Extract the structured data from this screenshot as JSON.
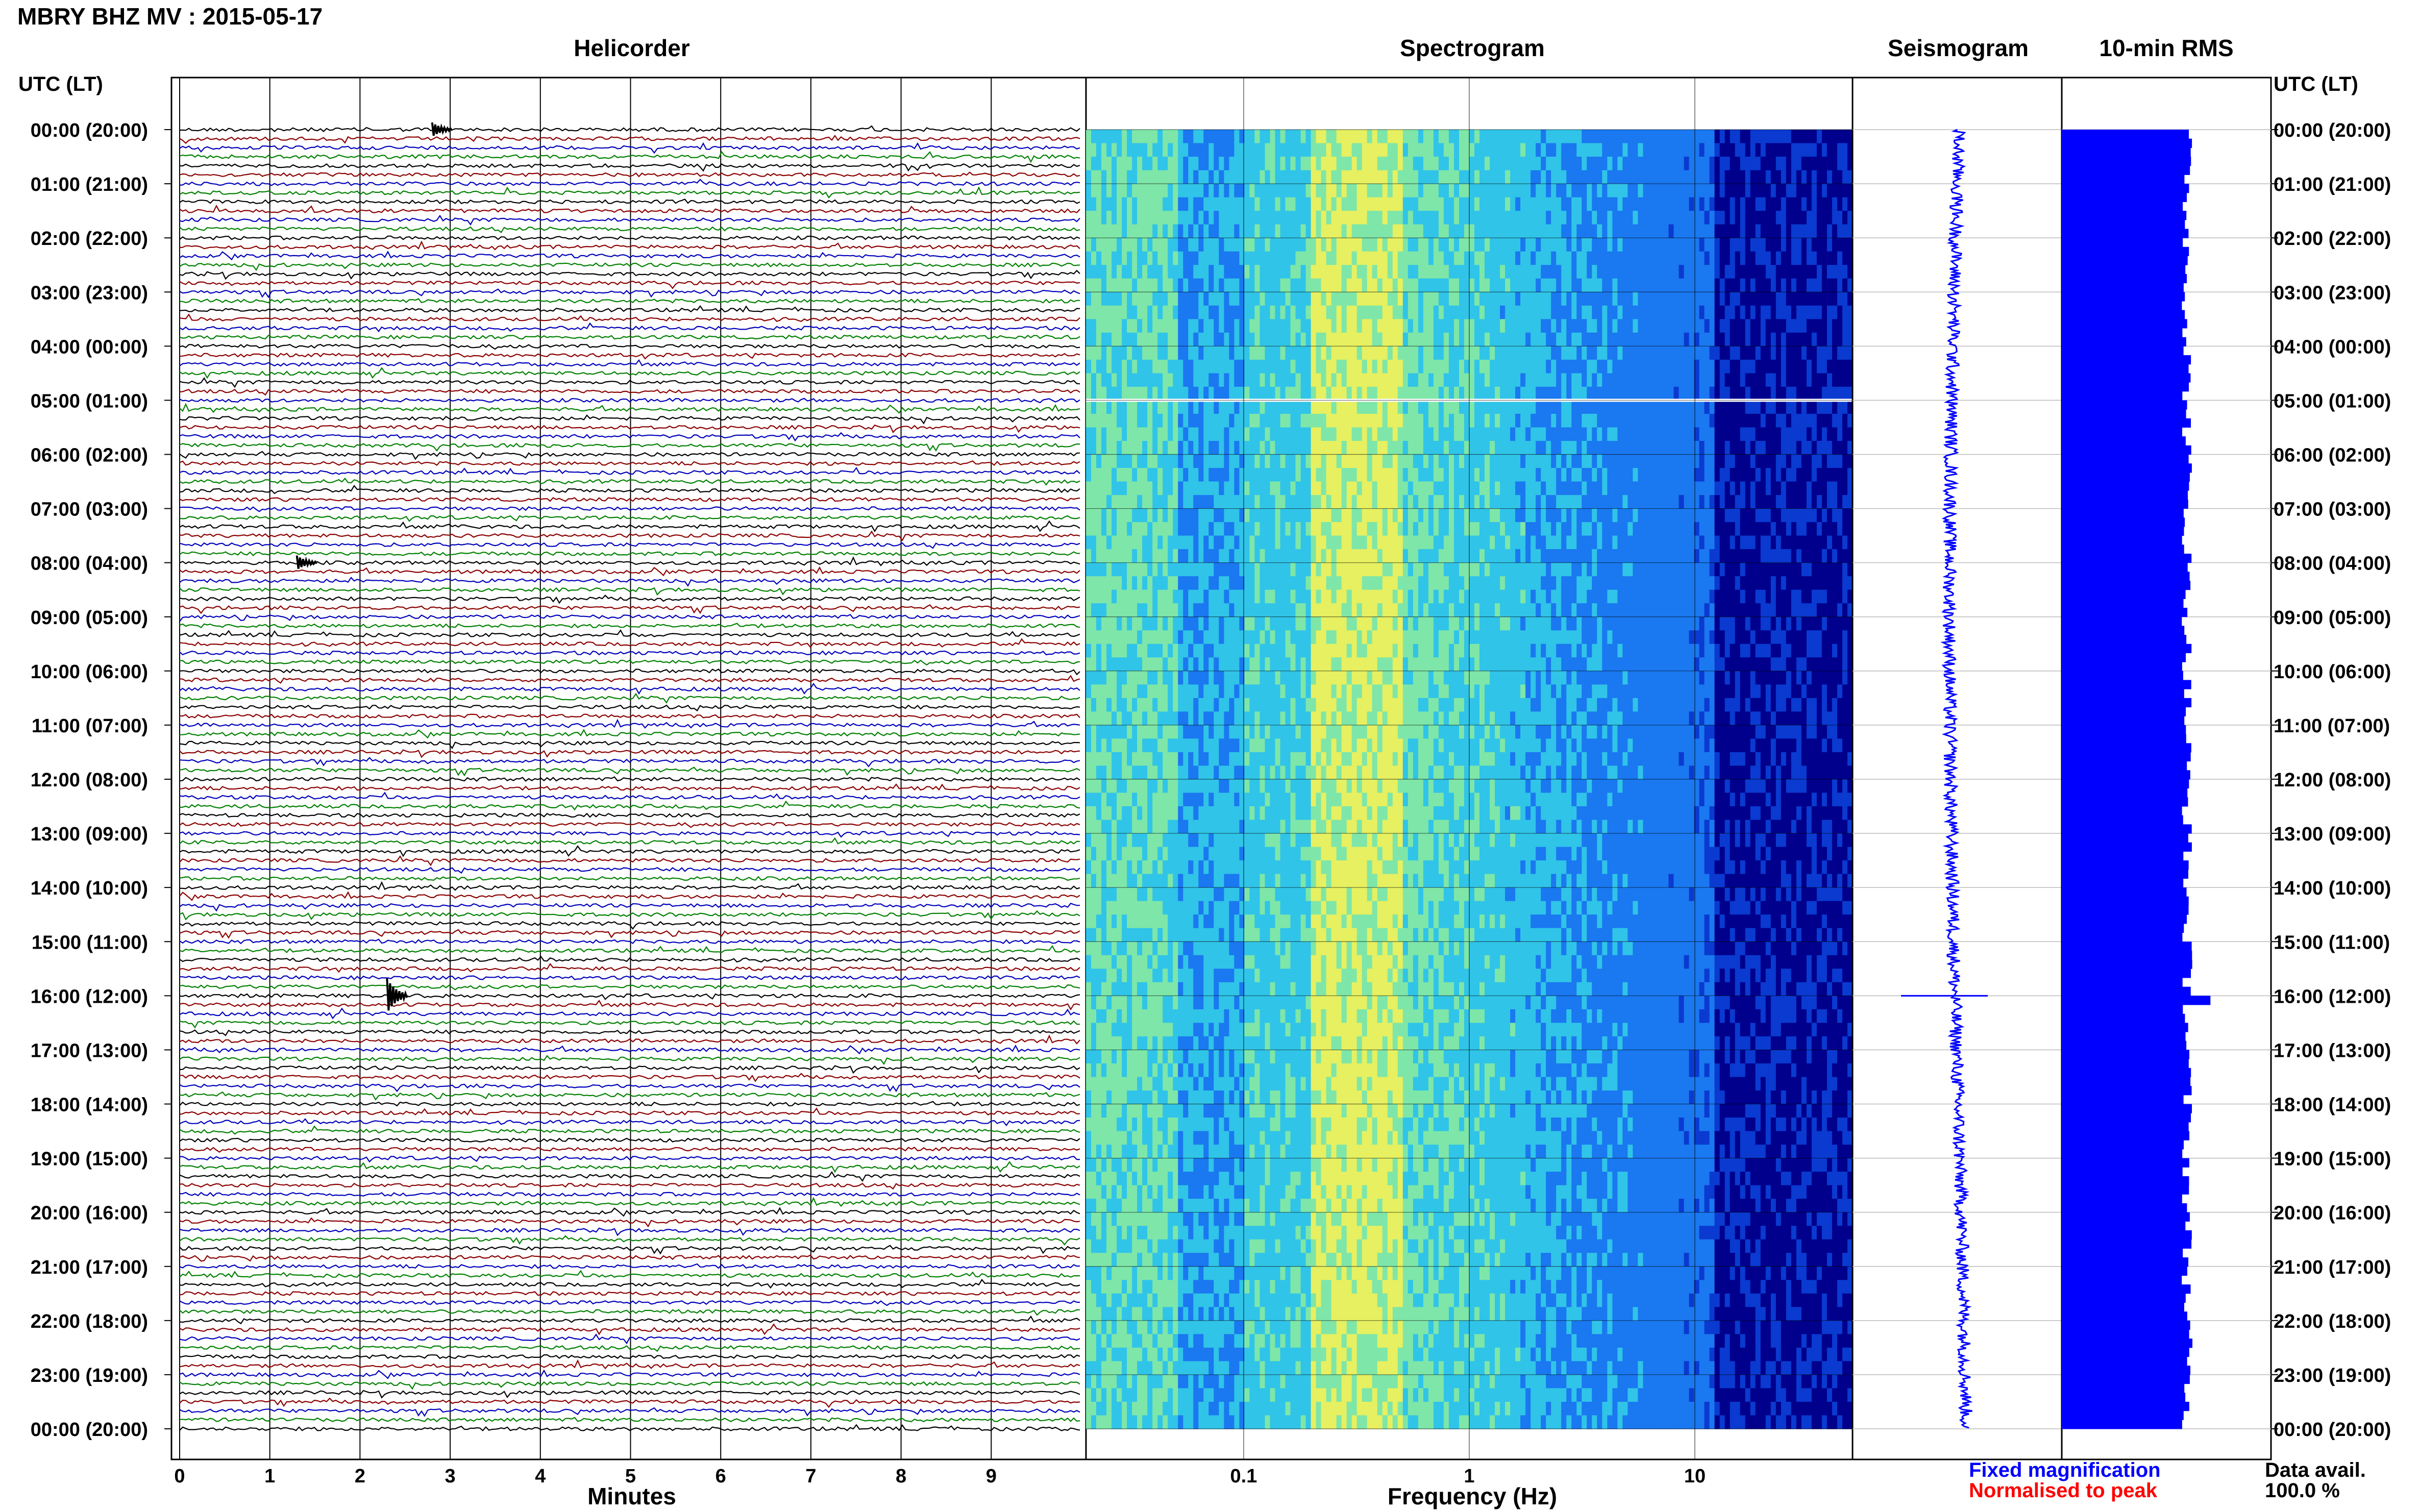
{
  "header": {
    "title": "MBRY BHZ MV : 2015-05-17",
    "tz_label": "UTC (LT)",
    "tz_label_right": "UTC (LT)"
  },
  "panels": {
    "helicorder": "Helicorder",
    "spectrogram": "Spectrogram",
    "seismogram": "Seismogram",
    "rms": "10-min RMS"
  },
  "axes": {
    "minutes_label": "Minutes",
    "frequency_label": "Frequency (Hz)"
  },
  "legend": {
    "fixed": "Fixed magnification",
    "normalised": "Normalised to peak",
    "fixed_color": "#0000ff",
    "normalised_color": "#ff0000"
  },
  "data_availability": {
    "label": "Data avail.",
    "value": "100.0 %"
  },
  "chart_data": [
    {
      "type": "line",
      "panel": "Helicorder",
      "xlabel": "Minutes",
      "x_ticks": [
        "0",
        "1",
        "2",
        "3",
        "4",
        "5",
        "6",
        "7",
        "8",
        "9"
      ],
      "xlim": [
        0,
        10
      ],
      "rows_per_hour": 6,
      "trace_colors": [
        "#000000",
        "#8b0000",
        "#0000bb",
        "#008000"
      ],
      "y_ticks": [
        "00:00 (20:00)",
        "01:00 (21:00)",
        "02:00 (22:00)",
        "03:00 (23:00)",
        "04:00 (00:00)",
        "05:00 (01:00)",
        "06:00 (02:00)",
        "07:00 (03:00)",
        "08:00 (04:00)",
        "09:00 (05:00)",
        "10:00 (06:00)",
        "11:00 (07:00)",
        "12:00 (08:00)",
        "13:00 (09:00)",
        "14:00 (10:00)",
        "15:00 (11:00)",
        "16:00 (12:00)",
        "17:00 (13:00)",
        "18:00 (14:00)",
        "19:00 (15:00)",
        "20:00 (16:00)",
        "21:00 (17:00)",
        "22:00 (18:00)",
        "23:00 (19:00)",
        "00:00 (20:00)"
      ],
      "events": [
        {
          "hour": 16,
          "minute": 2.3,
          "note": "largest event"
        },
        {
          "hour": 8,
          "minute": 1.3
        },
        {
          "hour": 0,
          "minute": 2.8
        }
      ]
    },
    {
      "type": "heatmap",
      "panel": "Spectrogram",
      "xlabel": "Frequency (Hz)",
      "x_scale": "log",
      "x_ticks": [
        "0.1",
        "1",
        "10"
      ],
      "xlim": [
        0.02,
        50
      ],
      "peak_band_hz": [
        0.2,
        0.5
      ],
      "colormap": [
        "#00008c",
        "#0a3ad0",
        "#1a78f0",
        "#30c4e8",
        "#7ee6a8",
        "#e6f060"
      ],
      "gap_hour": 5
    },
    {
      "type": "line",
      "panel": "Seismogram",
      "note": "24-hour trace, event spike near 16:00",
      "event_hour": 16
    },
    {
      "type": "bar",
      "panel": "10-min RMS",
      "orientation": "horizontal",
      "bars_per_hour": 6,
      "typical_value": 0.7,
      "peak": {
        "hour": 16,
        "value": 0.83
      },
      "color": "#0000ff"
    }
  ]
}
